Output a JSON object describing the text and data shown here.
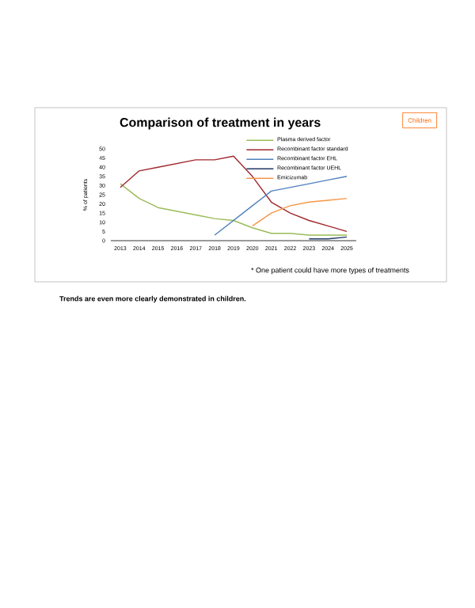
{
  "chart_data": {
    "type": "line",
    "title": "Comparison of treatment in years",
    "subtitle": "Children",
    "ylabel": "% of patients",
    "categories": [
      "2013",
      "2014",
      "2015",
      "2016",
      "2017",
      "2018",
      "2019",
      "2020",
      "2021",
      "2022",
      "2023",
      "2024",
      "2025"
    ],
    "series": [
      {
        "name": "Plasma derived factor",
        "color": "#9bbb59",
        "values": [
          31,
          23,
          18,
          16,
          14,
          12,
          11,
          7,
          4,
          4,
          3,
          3,
          3
        ]
      },
      {
        "name": "Recombinant factor standard",
        "color": "#a0282d",
        "values": [
          29,
          38,
          40,
          42,
          44,
          44,
          46,
          35,
          21,
          15,
          11,
          8,
          5
        ]
      },
      {
        "name": "Recombinant factor EHL",
        "color": "#4f81bd",
        "values": [
          null,
          null,
          null,
          null,
          null,
          3,
          11,
          19,
          27,
          29,
          31,
          33,
          35
        ]
      },
      {
        "name": "Recombinant factor UEHL",
        "color": "#1f3864",
        "values": [
          null,
          null,
          null,
          null,
          null,
          null,
          null,
          null,
          null,
          null,
          1,
          1,
          2
        ]
      },
      {
        "name": "Emicizumab",
        "color": "#f79646",
        "values": [
          null,
          null,
          null,
          null,
          null,
          null,
          null,
          8,
          15,
          19,
          21,
          22,
          23
        ]
      }
    ],
    "ylim": [
      0,
      50
    ],
    "yticks": [
      0,
      5,
      10,
      15,
      20,
      25,
      30,
      35,
      40,
      45,
      50
    ],
    "legend": "top right",
    "marker": "none",
    "line_style": "solid",
    "annotations": [
      "* One patient could have more types of treatments",
      "Trends are even more clearly demonstrated in children."
    ]
  }
}
